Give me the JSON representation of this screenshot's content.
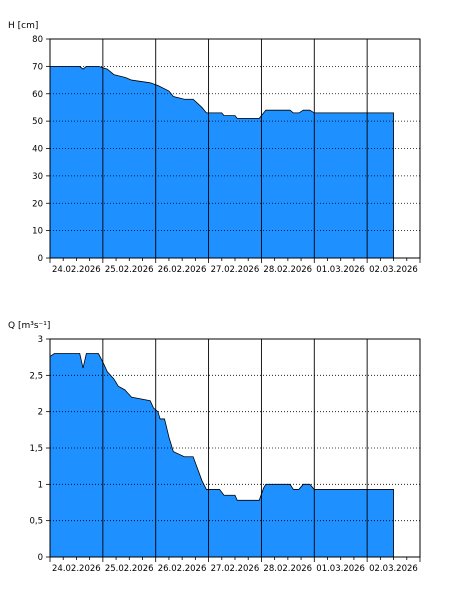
{
  "chart_data": [
    {
      "type": "area",
      "ylabel": "H [cm]",
      "ylim": [
        0,
        80
      ],
      "yticks": [
        "0",
        "10",
        "20",
        "30",
        "40",
        "50",
        "60",
        "70",
        "80"
      ],
      "xlim": [
        "2026-02-24T00:00",
        "2026-03-03T00:00"
      ],
      "xticks": [
        "24.02.2026",
        "25.02.2026",
        "26.02.2026",
        "27.02.2026",
        "28.02.2026",
        "01.03.2026",
        "02.03.2026"
      ],
      "grid": true,
      "fill_color": "#1e90ff",
      "points": [
        [
          "2026-02-24T00:00",
          70
        ],
        [
          "2026-02-24T13:30",
          70
        ],
        [
          "2026-02-24T15:00",
          69
        ],
        [
          "2026-02-24T16:30",
          70
        ],
        [
          "2026-02-24T22:00",
          70
        ],
        [
          "2026-02-25T02:00",
          69
        ],
        [
          "2026-02-25T05:00",
          67
        ],
        [
          "2026-02-25T10:00",
          66
        ],
        [
          "2026-02-25T13:00",
          65
        ],
        [
          "2026-02-25T21:30",
          64
        ],
        [
          "2026-02-26T01:00",
          63
        ],
        [
          "2026-02-26T06:00",
          61
        ],
        [
          "2026-02-26T08:00",
          59
        ],
        [
          "2026-02-26T13:00",
          58
        ],
        [
          "2026-02-26T17:00",
          58
        ],
        [
          "2026-02-26T21:00",
          55
        ],
        [
          "2026-02-26T23:00",
          53
        ],
        [
          "2026-02-27T06:00",
          53
        ],
        [
          "2026-02-27T07:00",
          52
        ],
        [
          "2026-02-27T12:00",
          52
        ],
        [
          "2026-02-27T13:00",
          51
        ],
        [
          "2026-02-27T23:00",
          51
        ],
        [
          "2026-02-28T01:00",
          53
        ],
        [
          "2026-02-28T02:00",
          54
        ],
        [
          "2026-02-28T13:00",
          54
        ],
        [
          "2026-02-28T14:30",
          53
        ],
        [
          "2026-02-28T17:00",
          53
        ],
        [
          "2026-02-28T19:00",
          54
        ],
        [
          "2026-02-28T22:00",
          54
        ],
        [
          "2026-03-01T00:00",
          53
        ],
        [
          "2026-03-02T12:00",
          53
        ]
      ]
    },
    {
      "type": "area",
      "ylabel": "Q [m³s⁻¹]",
      "ylim": [
        0,
        3
      ],
      "yticks": [
        "0",
        "0,5",
        "1",
        "1,5",
        "2",
        "2,5",
        "3"
      ],
      "xlim": [
        "2026-02-24T00:00",
        "2026-03-03T00:00"
      ],
      "xticks": [
        "24.02.2026",
        "25.02.2026",
        "26.02.2026",
        "27.02.2026",
        "28.02.2026",
        "01.03.2026",
        "02.03.2026"
      ],
      "grid": true,
      "fill_color": "#1e90ff",
      "points": [
        [
          "2026-02-24T00:00",
          2.76
        ],
        [
          "2026-02-24T02:00",
          2.8
        ],
        [
          "2026-02-24T13:30",
          2.8
        ],
        [
          "2026-02-24T15:00",
          2.6
        ],
        [
          "2026-02-24T16:30",
          2.8
        ],
        [
          "2026-02-24T22:00",
          2.8
        ],
        [
          "2026-02-25T00:30",
          2.65
        ],
        [
          "2026-02-25T02:00",
          2.55
        ],
        [
          "2026-02-25T05:00",
          2.45
        ],
        [
          "2026-02-25T07:00",
          2.35
        ],
        [
          "2026-02-25T10:00",
          2.3
        ],
        [
          "2026-02-25T13:00",
          2.2
        ],
        [
          "2026-02-25T21:30",
          2.15
        ],
        [
          "2026-02-25T23:00",
          2.05
        ],
        [
          "2026-02-26T01:00",
          2.0
        ],
        [
          "2026-02-26T02:00",
          1.9
        ],
        [
          "2026-02-26T04:00",
          1.9
        ],
        [
          "2026-02-26T06:00",
          1.65
        ],
        [
          "2026-02-26T08:00",
          1.45
        ],
        [
          "2026-02-26T13:00",
          1.38
        ],
        [
          "2026-02-26T17:00",
          1.38
        ],
        [
          "2026-02-26T21:00",
          1.05
        ],
        [
          "2026-02-26T23:00",
          0.93
        ],
        [
          "2026-02-27T05:00",
          0.93
        ],
        [
          "2026-02-27T07:00",
          0.85
        ],
        [
          "2026-02-27T12:00",
          0.85
        ],
        [
          "2026-02-27T13:00",
          0.78
        ],
        [
          "2026-02-27T23:00",
          0.78
        ],
        [
          "2026-02-28T01:00",
          0.95
        ],
        [
          "2026-02-28T02:00",
          1.0
        ],
        [
          "2026-02-28T13:00",
          1.0
        ],
        [
          "2026-02-28T14:30",
          0.93
        ],
        [
          "2026-02-28T17:00",
          0.93
        ],
        [
          "2026-02-28T19:00",
          1.0
        ],
        [
          "2026-02-28T22:00",
          1.0
        ],
        [
          "2026-03-01T00:00",
          0.93
        ],
        [
          "2026-03-02T12:00",
          0.93
        ]
      ]
    }
  ]
}
